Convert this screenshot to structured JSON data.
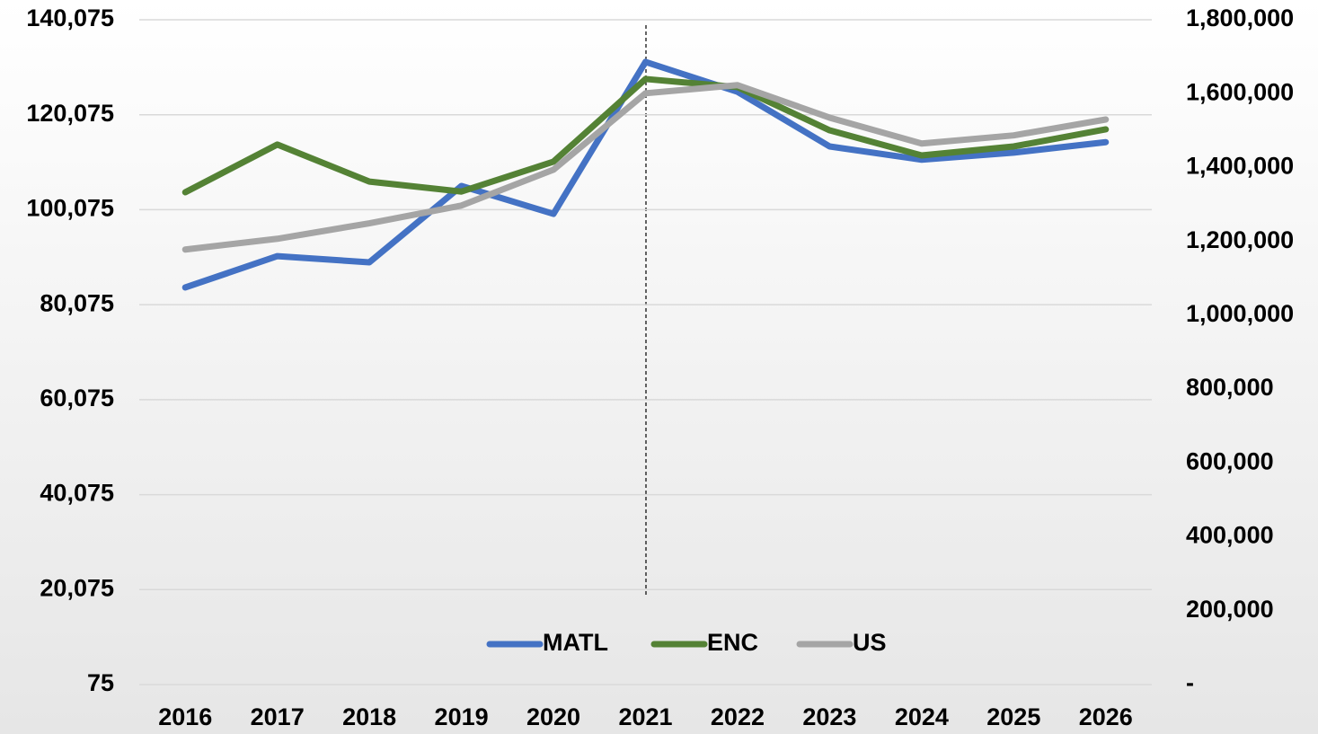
{
  "chart_data": {
    "type": "line",
    "categories": [
      "2016",
      "2017",
      "2018",
      "2019",
      "2020",
      "2021",
      "2022",
      "2023",
      "2024",
      "2025",
      "2026"
    ],
    "series": [
      {
        "name": "MATL",
        "color": "#4472c4",
        "values": [
          83700,
          90300,
          89000,
          105075,
          99200,
          131200,
          124900,
          113400,
          110600,
          112100,
          114300
        ]
      },
      {
        "name": "ENC",
        "color": "#548235",
        "values": [
          103750,
          113800,
          106000,
          103900,
          110200,
          127600,
          125900,
          116800,
          111500,
          113400,
          117000
        ]
      },
      {
        "name": "US",
        "color": "#a5a5a5",
        "axis": "y2",
        "values": [
          1178000,
          1207000,
          1249000,
          1297000,
          1394000,
          1601000,
          1623000,
          1535000,
          1465000,
          1487000,
          1530000
        ]
      }
    ],
    "ylim": [
      75,
      140075
    ],
    "yticks": [
      {
        "value": 75,
        "label": "75"
      },
      {
        "value": 20075,
        "label": "20,075"
      },
      {
        "value": 40075,
        "label": "40,075"
      },
      {
        "value": 60075,
        "label": "60,075"
      },
      {
        "value": 80075,
        "label": "80,075"
      },
      {
        "value": 100075,
        "label": "100,075"
      },
      {
        "value": 120075,
        "label": "120,075"
      },
      {
        "value": 140075,
        "label": "140,075"
      }
    ],
    "y2lim": [
      0,
      1800000
    ],
    "y2ticks": [
      {
        "value": 0,
        "label": "-"
      },
      {
        "value": 200000,
        "label": "200,000"
      },
      {
        "value": 400000,
        "label": "400,000"
      },
      {
        "value": 600000,
        "label": "600,000"
      },
      {
        "value": 800000,
        "label": "800,000"
      },
      {
        "value": 1000000,
        "label": "1,000,000"
      },
      {
        "value": 1200000,
        "label": "1,200,000"
      },
      {
        "value": 1400000,
        "label": "1,400,000"
      },
      {
        "value": 1600000,
        "label": "1,600,000"
      },
      {
        "value": 1800000,
        "label": "1,800,000"
      }
    ],
    "grid": true,
    "legend": "bottom"
  }
}
